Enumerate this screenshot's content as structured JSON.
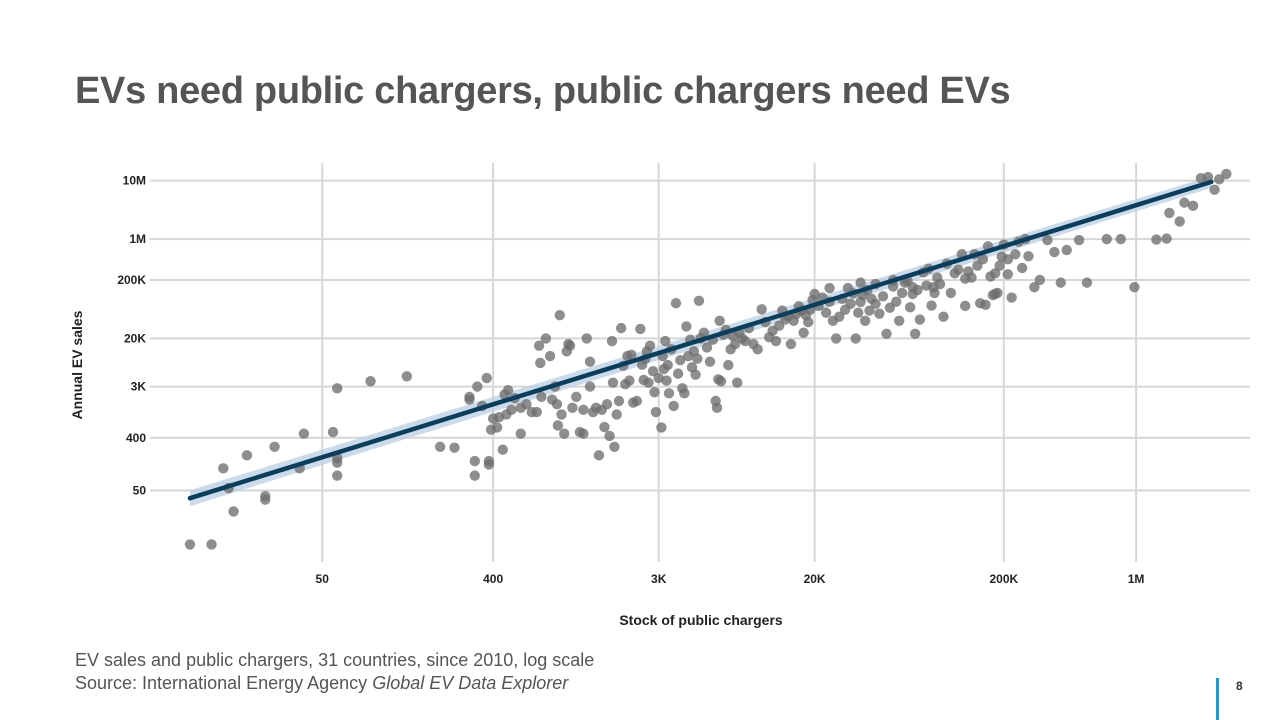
{
  "title": "EVs need public chargers, public chargers need EVs",
  "subtitle": "EV sales and public chargers, 31 countries, since 2010, log scale",
  "source_prefix": "Source: International Energy Agency ",
  "source_title": "Global EV Data Explorer",
  "page_number": "8",
  "colors": {
    "points": "#6e6e6e",
    "trend_line": "#0b3d5c",
    "confidence_band": "#b9cfe3",
    "accent": "#1a9ad6"
  },
  "chart_data": {
    "type": "scatter",
    "xlabel": "Stock of public chargers",
    "ylabel": "Annual EV sales",
    "x_scale": "log",
    "y_scale": "log",
    "xlim": [
      6,
      4000000
    ],
    "ylim": [
      3,
      20000000
    ],
    "x_ticks": [
      {
        "value": 50,
        "label": "50"
      },
      {
        "value": 400,
        "label": "400"
      },
      {
        "value": 3000,
        "label": "3K"
      },
      {
        "value": 20000,
        "label": "20K"
      },
      {
        "value": 200000,
        "label": "200K"
      },
      {
        "value": 1000000,
        "label": "1M"
      }
    ],
    "y_ticks": [
      {
        "value": 50,
        "label": "50"
      },
      {
        "value": 400,
        "label": "400"
      },
      {
        "value": 3000,
        "label": "3K"
      },
      {
        "value": 20000,
        "label": "20K"
      },
      {
        "value": 200000,
        "label": "200K"
      },
      {
        "value": 1000000,
        "label": "1M"
      },
      {
        "value": 10000000,
        "label": "10M"
      }
    ],
    "grid": true,
    "trend_line": {
      "x": [
        10,
        2500000
      ],
      "y": [
        37,
        9500000
      ]
    },
    "points": [
      [
        10,
        6
      ],
      [
        13,
        6
      ],
      [
        15,
        120
      ],
      [
        16,
        55
      ],
      [
        17,
        22
      ],
      [
        20,
        200
      ],
      [
        25,
        40
      ],
      [
        25,
        35
      ],
      [
        28,
        280
      ],
      [
        38,
        120
      ],
      [
        40,
        470
      ],
      [
        57,
        500
      ],
      [
        60,
        180
      ],
      [
        60,
        150
      ],
      [
        60,
        90
      ],
      [
        60,
        2800
      ],
      [
        90,
        3700
      ],
      [
        140,
        4500
      ],
      [
        210,
        280
      ],
      [
        250,
        270
      ],
      [
        300,
        1800
      ],
      [
        300,
        2000
      ],
      [
        320,
        160
      ],
      [
        320,
        90
      ],
      [
        330,
        3000
      ],
      [
        350,
        1400
      ],
      [
        370,
        4200
      ],
      [
        380,
        160
      ],
      [
        380,
        140
      ],
      [
        390,
        550
      ],
      [
        400,
        850
      ],
      [
        420,
        600
      ],
      [
        430,
        900
      ],
      [
        450,
        250
      ],
      [
        460,
        2200
      ],
      [
        470,
        1000
      ],
      [
        480,
        2600
      ],
      [
        500,
        1200
      ],
      [
        520,
        1900
      ],
      [
        560,
        1300
      ],
      [
        560,
        470
      ],
      [
        600,
        1500
      ],
      [
        640,
        1100
      ],
      [
        680,
        1100
      ],
      [
        700,
        15000
      ],
      [
        710,
        7600
      ],
      [
        720,
        2000
      ],
      [
        760,
        20000
      ],
      [
        800,
        10000
      ],
      [
        820,
        1800
      ],
      [
        850,
        3000
      ],
      [
        870,
        1500
      ],
      [
        880,
        650
      ],
      [
        900,
        50000
      ],
      [
        920,
        1000
      ],
      [
        950,
        470
      ],
      [
        980,
        12000
      ],
      [
        1000,
        16000
      ],
      [
        1020,
        15000
      ],
      [
        1050,
        1300
      ],
      [
        1100,
        2000
      ],
      [
        1150,
        500
      ],
      [
        1200,
        1200
      ],
      [
        1200,
        470
      ],
      [
        1250,
        20000
      ],
      [
        1300,
        8000
      ],
      [
        1300,
        3000
      ],
      [
        1350,
        1100
      ],
      [
        1400,
        1300
      ],
      [
        1450,
        200
      ],
      [
        1500,
        1200
      ],
      [
        1550,
        610
      ],
      [
        1600,
        1500
      ],
      [
        1650,
        430
      ],
      [
        1700,
        18000
      ],
      [
        1720,
        3500
      ],
      [
        1750,
        280
      ],
      [
        1800,
        1000
      ],
      [
        1850,
        1700
      ],
      [
        1900,
        30000
      ],
      [
        1950,
        6800
      ],
      [
        2000,
        3300
      ],
      [
        2050,
        10000
      ],
      [
        2100,
        3800
      ],
      [
        2150,
        10500
      ],
      [
        2200,
        1600
      ],
      [
        2300,
        1700
      ],
      [
        2400,
        29000
      ],
      [
        2450,
        7100
      ],
      [
        2500,
        3900
      ],
      [
        2550,
        9000
      ],
      [
        2600,
        12000
      ],
      [
        2650,
        3500
      ],
      [
        2700,
        15000
      ],
      [
        2800,
        5500
      ],
      [
        2850,
        2400
      ],
      [
        2900,
        1100
      ],
      [
        3000,
        4200
      ],
      [
        3100,
        600
      ],
      [
        3150,
        10000
      ],
      [
        3200,
        6000
      ],
      [
        3250,
        18000
      ],
      [
        3300,
        3800
      ],
      [
        3350,
        7000
      ],
      [
        3400,
        2300
      ],
      [
        3500,
        13000
      ],
      [
        3600,
        1400
      ],
      [
        3700,
        80000
      ],
      [
        3800,
        5000
      ],
      [
        3900,
        8500
      ],
      [
        4000,
        2800
      ],
      [
        4100,
        2300
      ],
      [
        4200,
        32000
      ],
      [
        4300,
        10000
      ],
      [
        4400,
        19000
      ],
      [
        4500,
        6400
      ],
      [
        4600,
        12000
      ],
      [
        4700,
        4800
      ],
      [
        4800,
        9000
      ],
      [
        4900,
        88000
      ],
      [
        5000,
        20000
      ],
      [
        5200,
        25000
      ],
      [
        5400,
        14000
      ],
      [
        5600,
        8000
      ],
      [
        5800,
        19000
      ],
      [
        6000,
        1700
      ],
      [
        6100,
        1300
      ],
      [
        6200,
        4000
      ],
      [
        6300,
        40000
      ],
      [
        6400,
        3700
      ],
      [
        6600,
        23000
      ],
      [
        6800,
        28000
      ],
      [
        7000,
        7000
      ],
      [
        7200,
        13000
      ],
      [
        7400,
        22000
      ],
      [
        7600,
        16000
      ],
      [
        7800,
        3500
      ],
      [
        8000,
        25000
      ],
      [
        8300,
        20000
      ],
      [
        8600,
        18000
      ],
      [
        9000,
        30000
      ],
      [
        9500,
        16000
      ],
      [
        10000,
        13000
      ],
      [
        10500,
        63000
      ],
      [
        11000,
        38000
      ],
      [
        11500,
        21000
      ],
      [
        12000,
        27000
      ],
      [
        12500,
        18000
      ],
      [
        13000,
        33000
      ],
      [
        13500,
        60000
      ],
      [
        14000,
        42000
      ],
      [
        14500,
        48000
      ],
      [
        15000,
        16000
      ],
      [
        15500,
        40000
      ],
      [
        16000,
        52000
      ],
      [
        16500,
        71000
      ],
      [
        17000,
        60000
      ],
      [
        17500,
        25000
      ],
      [
        18000,
        50000
      ],
      [
        18500,
        38000
      ],
      [
        19000,
        62000
      ],
      [
        19500,
        90000
      ],
      [
        20000,
        115000
      ],
      [
        21000,
        72000
      ],
      [
        22000,
        100000
      ],
      [
        23000,
        55000
      ],
      [
        24000,
        85000
      ],
      [
        25000,
        40000
      ],
      [
        26000,
        20000
      ],
      [
        27000,
        47000
      ],
      [
        28000,
        95000
      ],
      [
        29000,
        62000
      ],
      [
        30000,
        145000
      ],
      [
        31000,
        78000
      ],
      [
        32000,
        118000
      ],
      [
        33000,
        20000
      ],
      [
        34000,
        55000
      ],
      [
        35000,
        84000
      ],
      [
        36000,
        110000
      ],
      [
        37000,
        40000
      ],
      [
        38000,
        135000
      ],
      [
        39000,
        60000
      ],
      [
        40000,
        95000
      ],
      [
        42000,
        78000
      ],
      [
        44000,
        53000
      ],
      [
        46000,
        105000
      ],
      [
        48000,
        24000
      ],
      [
        50000,
        67000
      ],
      [
        52000,
        155000
      ],
      [
        54000,
        85000
      ],
      [
        56000,
        40000
      ],
      [
        58000,
        120000
      ],
      [
        60000,
        180000
      ],
      [
        62000,
        190000
      ],
      [
        64000,
        68000
      ],
      [
        66000,
        115000
      ],
      [
        68000,
        24000
      ],
      [
        70000,
        135000
      ],
      [
        72000,
        42000
      ],
      [
        75000,
        270000
      ],
      [
        78000,
        160000
      ],
      [
        80000,
        310000
      ],
      [
        83000,
        73000
      ],
      [
        86000,
        120000
      ],
      [
        89000,
        220000
      ],
      [
        92000,
        170000
      ],
      [
        96000,
        47000
      ],
      [
        100000,
        380000
      ],
      [
        105000,
        120000
      ],
      [
        110000,
        260000
      ],
      [
        115000,
        300000
      ],
      [
        120000,
        550000
      ],
      [
        125000,
        72000
      ],
      [
        130000,
        280000
      ],
      [
        135000,
        220000
      ],
      [
        140000,
        550000
      ],
      [
        145000,
        350000
      ],
      [
        150000,
        80000
      ],
      [
        155000,
        450000
      ],
      [
        160000,
        75000
      ],
      [
        165000,
        750000
      ],
      [
        170000,
        230000
      ],
      [
        175000,
        110000
      ],
      [
        180000,
        115000
      ],
      [
        185000,
        120000
      ],
      [
        190000,
        350000
      ],
      [
        195000,
        500000
      ],
      [
        200000,
        800000
      ],
      [
        210000,
        450000
      ],
      [
        220000,
        100000
      ],
      [
        230000,
        550000
      ],
      [
        240000,
        900000
      ],
      [
        250000,
        320000
      ],
      [
        260000,
        1000000
      ],
      [
        270000,
        510000
      ],
      [
        290000,
        150000
      ],
      [
        310000,
        200000
      ],
      [
        340000,
        960000
      ],
      [
        370000,
        600000
      ],
      [
        400000,
        180000
      ],
      [
        430000,
        650000
      ],
      [
        500000,
        960000
      ],
      [
        550000,
        180000
      ],
      [
        700000,
        1000000
      ],
      [
        830000,
        1000000
      ],
      [
        980000,
        150000
      ],
      [
        1280000,
        980000
      ],
      [
        1450000,
        1020000
      ],
      [
        1500000,
        2800000
      ],
      [
        1700000,
        2000000
      ],
      [
        1800000,
        4200000
      ],
      [
        2000000,
        3700000
      ],
      [
        2400000,
        11500000
      ],
      [
        2200000,
        11000000
      ],
      [
        2600000,
        7000000
      ],
      [
        2750000,
        10500000
      ],
      [
        3000000,
        13000000
      ],
      [
        210000,
        250000
      ],
      [
        85000,
        150000
      ],
      [
        42000,
        170000
      ],
      [
        66000,
        150000
      ],
      [
        52000,
        200000
      ],
      [
        125000,
        210000
      ],
      [
        35000,
        180000
      ],
      [
        24000,
        145000
      ],
      [
        180000,
        260000
      ]
    ]
  }
}
